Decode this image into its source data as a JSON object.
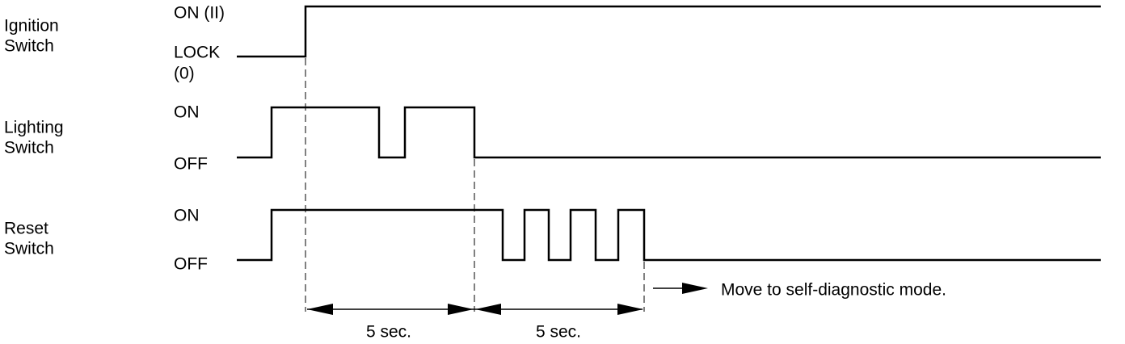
{
  "signals": [
    {
      "label": [
        "Ignition",
        "Switch"
      ],
      "high": [
        "ON (II)"
      ],
      "low": [
        "LOCK",
        "(0)"
      ]
    },
    {
      "label": [
        "Lighting",
        "Switch"
      ],
      "high": [
        "ON"
      ],
      "low": [
        "OFF"
      ]
    },
    {
      "label": [
        "Reset",
        "Switch"
      ],
      "high": [
        "ON"
      ],
      "low": [
        "OFF"
      ]
    }
  ],
  "intervals": [
    "5 sec.",
    "5 sec."
  ],
  "note": "Move to self-diagnostic mode."
}
